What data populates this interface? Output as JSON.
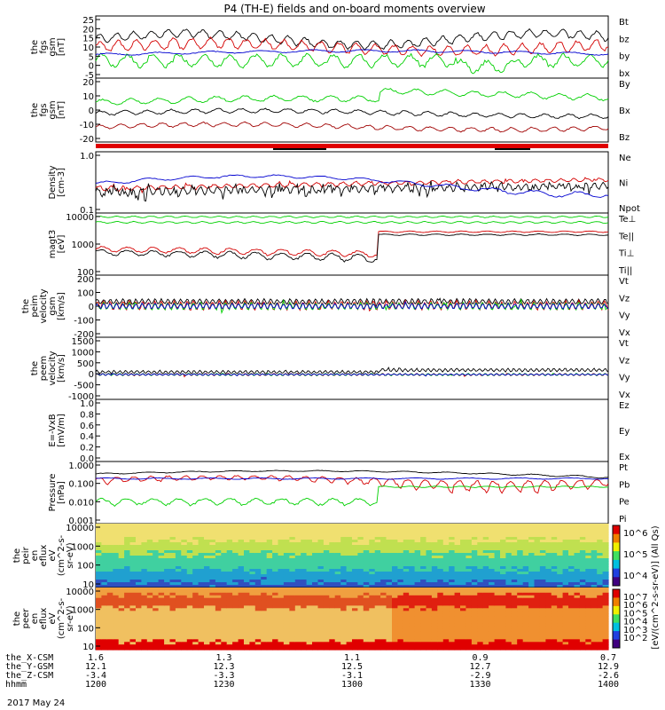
{
  "title": "P4 (TH-E) fields and on-board moments overview",
  "date_label": "2017 May 24",
  "colors": {
    "black": "#000000",
    "red": "#d40000",
    "green": "#00d000",
    "blue": "#0000d0",
    "darkred": "#a00000"
  },
  "chart_data": [
    {
      "type": "line",
      "ylabel_lines": [
        "the",
        "fgs",
        "gsm",
        "[nT]"
      ],
      "yticks": [
        "25",
        "20",
        "15",
        "10",
        "5",
        "0",
        "-5"
      ],
      "ylim": [
        -5,
        27
      ],
      "series": [
        {
          "name": "Bt",
          "color": "black"
        },
        {
          "name": "bz",
          "color": "red"
        },
        {
          "name": "by",
          "color": "green"
        },
        {
          "name": "bx",
          "color": "blue"
        }
      ]
    },
    {
      "type": "line",
      "ylabel_lines": [
        "the",
        "fgs",
        "gsm",
        "[nT]"
      ],
      "yticks": [
        "20",
        "10",
        "0",
        "-10",
        "-20"
      ],
      "ylim": [
        -25,
        22
      ],
      "series": [
        {
          "name": "By",
          "color": "green"
        },
        {
          "name": "Bx",
          "color": "black"
        },
        {
          "name": "Bz",
          "color": "darkred"
        }
      ]
    },
    {
      "type": "line",
      "ylabel_lines": [
        "Density",
        "[cm-3]"
      ],
      "yticks": [
        "1.0",
        "0.1"
      ],
      "ylim": [
        0.1,
        1.0
      ],
      "yscale": "log",
      "series": [
        {
          "name": "Ne",
          "color": "red"
        },
        {
          "name": "Ni",
          "color": "black"
        },
        {
          "name": "Npot",
          "color": "blue"
        }
      ]
    },
    {
      "type": "line",
      "ylabel_lines": [
        "magt3",
        "[eV]"
      ],
      "yticks": [
        "10000",
        "1000",
        "100"
      ],
      "ylim": [
        100,
        10000
      ],
      "yscale": "log",
      "series": [
        {
          "name": "Te⊥",
          "color": "red"
        },
        {
          "name": "Te||",
          "color": "black"
        },
        {
          "name": "Ti⊥",
          "color": "green"
        },
        {
          "name": "Ti||",
          "color": "green"
        }
      ]
    },
    {
      "type": "line",
      "ylabel_lines": [
        "the",
        "peim",
        "velocity",
        "gsm",
        "[km/s]"
      ],
      "yticks": [
        "200",
        "100",
        "0",
        "-100",
        "-200"
      ],
      "ylim": [
        -200,
        200
      ],
      "series": [
        {
          "name": "Vt",
          "color": "black"
        },
        {
          "name": "Vz",
          "color": "red"
        },
        {
          "name": "Vy",
          "color": "green"
        },
        {
          "name": "Vx",
          "color": "blue"
        }
      ]
    },
    {
      "type": "line",
      "ylabel_lines": [
        "the",
        "peem",
        "velocity",
        "[km/s]"
      ],
      "yticks": [
        "1500",
        "1000",
        "500",
        "0",
        "-500",
        "-1000"
      ],
      "ylim": [
        -1000,
        1500
      ],
      "series": [
        {
          "name": "Vt",
          "color": "black"
        },
        {
          "name": "Vz",
          "color": "red"
        },
        {
          "name": "Vy",
          "color": "green"
        },
        {
          "name": "Vx",
          "color": "blue"
        }
      ]
    },
    {
      "type": "line",
      "ylabel_lines": [
        "E=-VxB",
        "[mV/m]"
      ],
      "yticks": [
        "1.0",
        "0.8",
        "0.6",
        "0.4",
        "0.2",
        "0.0"
      ],
      "ylim": [
        0,
        1
      ],
      "series": [
        {
          "name": "Ez",
          "color": "red"
        },
        {
          "name": "Ey",
          "color": "green"
        },
        {
          "name": "Ex",
          "color": "blue"
        }
      ]
    },
    {
      "type": "line",
      "ylabel_lines": [
        "Pressure",
        "[nPa]"
      ],
      "yticks": [
        "1.000",
        "0.100",
        "0.010",
        "0.001"
      ],
      "ylim": [
        0.001,
        1
      ],
      "yscale": "log",
      "series": [
        {
          "name": "Pt",
          "color": "black"
        },
        {
          "name": "Pb",
          "color": "red"
        },
        {
          "name": "Pe",
          "color": "green"
        },
        {
          "name": "Pi",
          "color": "blue"
        }
      ]
    },
    {
      "type": "heatmap",
      "ylabel_lines": [
        "the",
        "peir",
        "en",
        "eflux",
        "eV",
        "(cm^2-s-",
        "sr-eV)"
      ],
      "yticks": [
        "10000",
        "1000",
        "100",
        "10"
      ],
      "ylim": [
        5,
        25000
      ],
      "yscale": "log"
    },
    {
      "type": "heatmap",
      "ylabel_lines": [
        "the",
        "peer",
        "en",
        "eflux",
        "eV",
        "(cm^2-s-",
        "sr-eV)"
      ],
      "yticks": [
        "10000",
        "1000",
        "100",
        "10"
      ],
      "ylim": [
        5,
        25000
      ],
      "yscale": "log"
    }
  ],
  "colorbar_1": {
    "ticks": [
      "10^6",
      "10^5",
      "10^4"
    ]
  },
  "colorbar_2": {
    "ticks": [
      "10^7",
      "10^6",
      "10^5",
      "10^4",
      "10^3",
      "10^2"
    ]
  },
  "colorbar_label": "[eV/(cm^2-s-sr-eV)] (All Qs)",
  "x_axis": {
    "rows": [
      {
        "label": "the_X-CSM",
        "values": [
          "1.6",
          "1.3",
          "1.1",
          "0.9",
          "0.7"
        ]
      },
      {
        "label": "the_Y-GSM",
        "values": [
          "12.1",
          "12.3",
          "12.5",
          "12.7",
          "12.9"
        ]
      },
      {
        "label": "the_Z-CSM",
        "values": [
          "-3.4",
          "-3.3",
          "-3.1",
          "-2.9",
          "-2.6"
        ]
      },
      {
        "label": "hhmm",
        "values": [
          "1200",
          "1230",
          "1300",
          "1330",
          "1400"
        ]
      }
    ]
  }
}
